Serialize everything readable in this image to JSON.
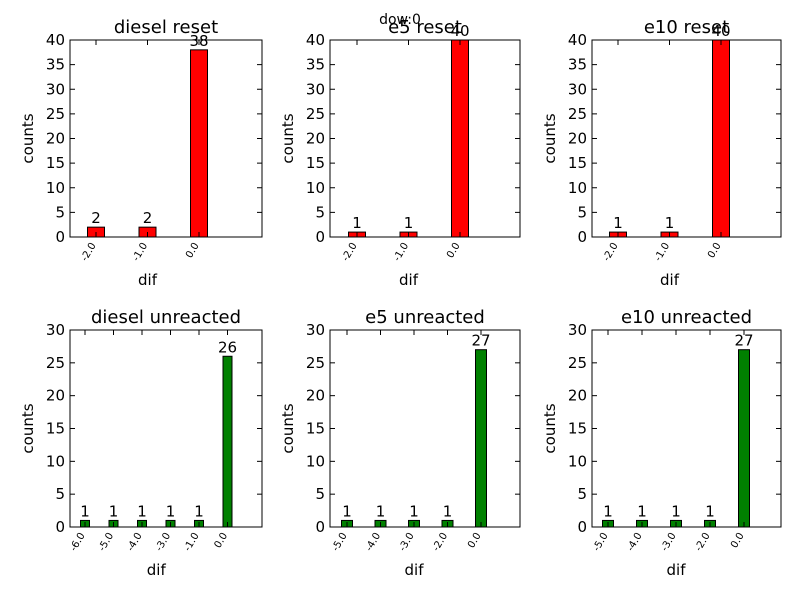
{
  "suptitle": "dow:0",
  "chart_data": [
    {
      "type": "bar",
      "title": "diesel reset",
      "xlabel": "dif",
      "ylabel": "counts",
      "categories": [
        "-2.0",
        "-1.0",
        "0.0"
      ],
      "values": [
        2,
        2,
        38
      ],
      "ylim": [
        0,
        40
      ],
      "yticks": [
        0,
        5,
        10,
        15,
        20,
        25,
        30,
        35,
        40
      ],
      "color": "#ff0000"
    },
    {
      "type": "bar",
      "title": "e5 reset",
      "xlabel": "dif",
      "ylabel": "counts",
      "categories": [
        "-2.0",
        "-1.0",
        "0.0"
      ],
      "values": [
        1,
        1,
        40
      ],
      "ylim": [
        0,
        40
      ],
      "yticks": [
        0,
        5,
        10,
        15,
        20,
        25,
        30,
        35,
        40
      ],
      "color": "#ff0000"
    },
    {
      "type": "bar",
      "title": "e10 reset",
      "xlabel": "dif",
      "ylabel": "counts",
      "categories": [
        "-2.0",
        "-1.0",
        "0.0"
      ],
      "values": [
        1,
        1,
        40
      ],
      "ylim": [
        0,
        40
      ],
      "yticks": [
        0,
        5,
        10,
        15,
        20,
        25,
        30,
        35,
        40
      ],
      "color": "#ff0000"
    },
    {
      "type": "bar",
      "title": "diesel unreacted",
      "xlabel": "dif",
      "ylabel": "counts",
      "categories": [
        "-6.0",
        "-5.0",
        "-4.0",
        "-3.0",
        "-1.0",
        "0.0"
      ],
      "values": [
        1,
        1,
        1,
        1,
        1,
        26
      ],
      "ylim": [
        0,
        30
      ],
      "yticks": [
        0,
        5,
        10,
        15,
        20,
        25,
        30
      ],
      "color": "#008000"
    },
    {
      "type": "bar",
      "title": "e5 unreacted",
      "xlabel": "dif",
      "ylabel": "counts",
      "categories": [
        "-5.0",
        "-4.0",
        "-3.0",
        "-2.0",
        "0.0"
      ],
      "values": [
        1,
        1,
        1,
        1,
        27
      ],
      "ylim": [
        0,
        30
      ],
      "yticks": [
        0,
        5,
        10,
        15,
        20,
        25,
        30
      ],
      "color": "#008000"
    },
    {
      "type": "bar",
      "title": "e10 unreacted",
      "xlabel": "dif",
      "ylabel": "counts",
      "categories": [
        "-5.0",
        "-4.0",
        "-3.0",
        "-2.0",
        "0.0"
      ],
      "values": [
        1,
        1,
        1,
        1,
        27
      ],
      "ylim": [
        0,
        30
      ],
      "yticks": [
        0,
        5,
        10,
        15,
        20,
        25,
        30
      ],
      "color": "#008000"
    }
  ]
}
